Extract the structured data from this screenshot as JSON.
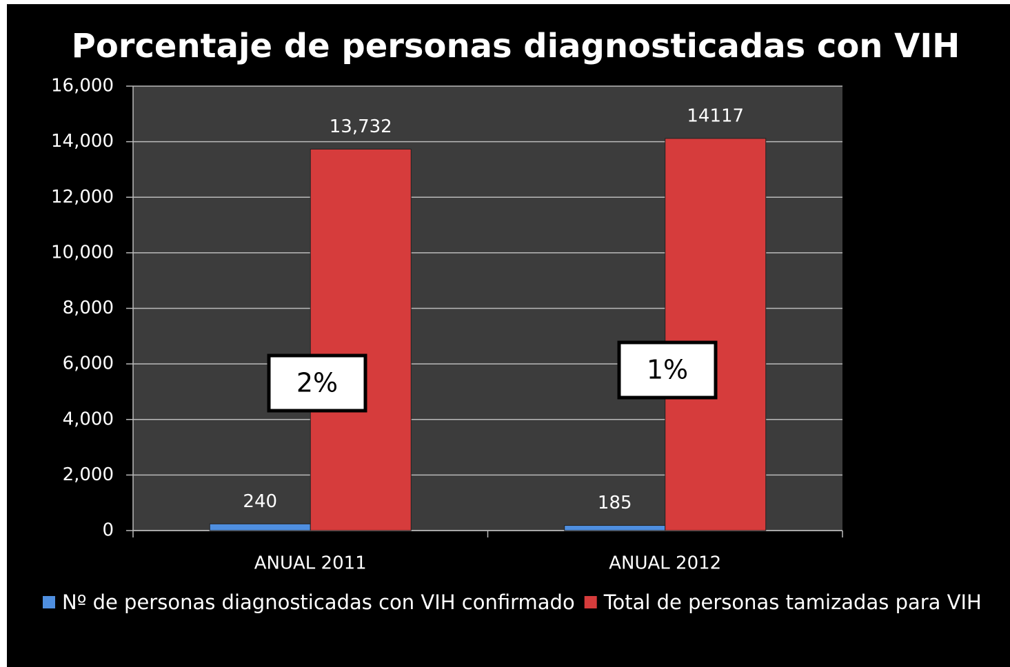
{
  "chart_data": {
    "type": "bar",
    "title": "Porcentaje de personas diagnosticadas con VIH",
    "categories": [
      "ANUAL 2011",
      "ANUAL 2012"
    ],
    "series": [
      {
        "name": "Nº de personas diagnosticadas con VIH confirmado",
        "color": "#4f8fe0",
        "values": [
          240,
          185
        ]
      },
      {
        "name": "Total de personas tamizadas para VIH",
        "color": "#d63c3c",
        "values": [
          13732,
          14117
        ],
        "value_labels": [
          "13,732",
          "14117"
        ]
      }
    ],
    "annotations": [
      "2%",
      "1%"
    ],
    "ylim": [
      0,
      16000
    ],
    "yticks": [
      0,
      {
        "value": 2000,
        "label": "2,000"
      },
      {
        "value": 4000,
        "label": "4,000"
      },
      {
        "value": 6000,
        "label": "6,000"
      },
      {
        "value": 8000,
        "label": "8,000"
      },
      {
        "value": 10000,
        "label": "10,000"
      },
      {
        "value": 12000,
        "label": "12,000"
      },
      {
        "value": 14000,
        "label": "14,000"
      },
      {
        "value": 16000,
        "label": "16,000"
      }
    ],
    "grid": true,
    "legend": "bottom"
  }
}
